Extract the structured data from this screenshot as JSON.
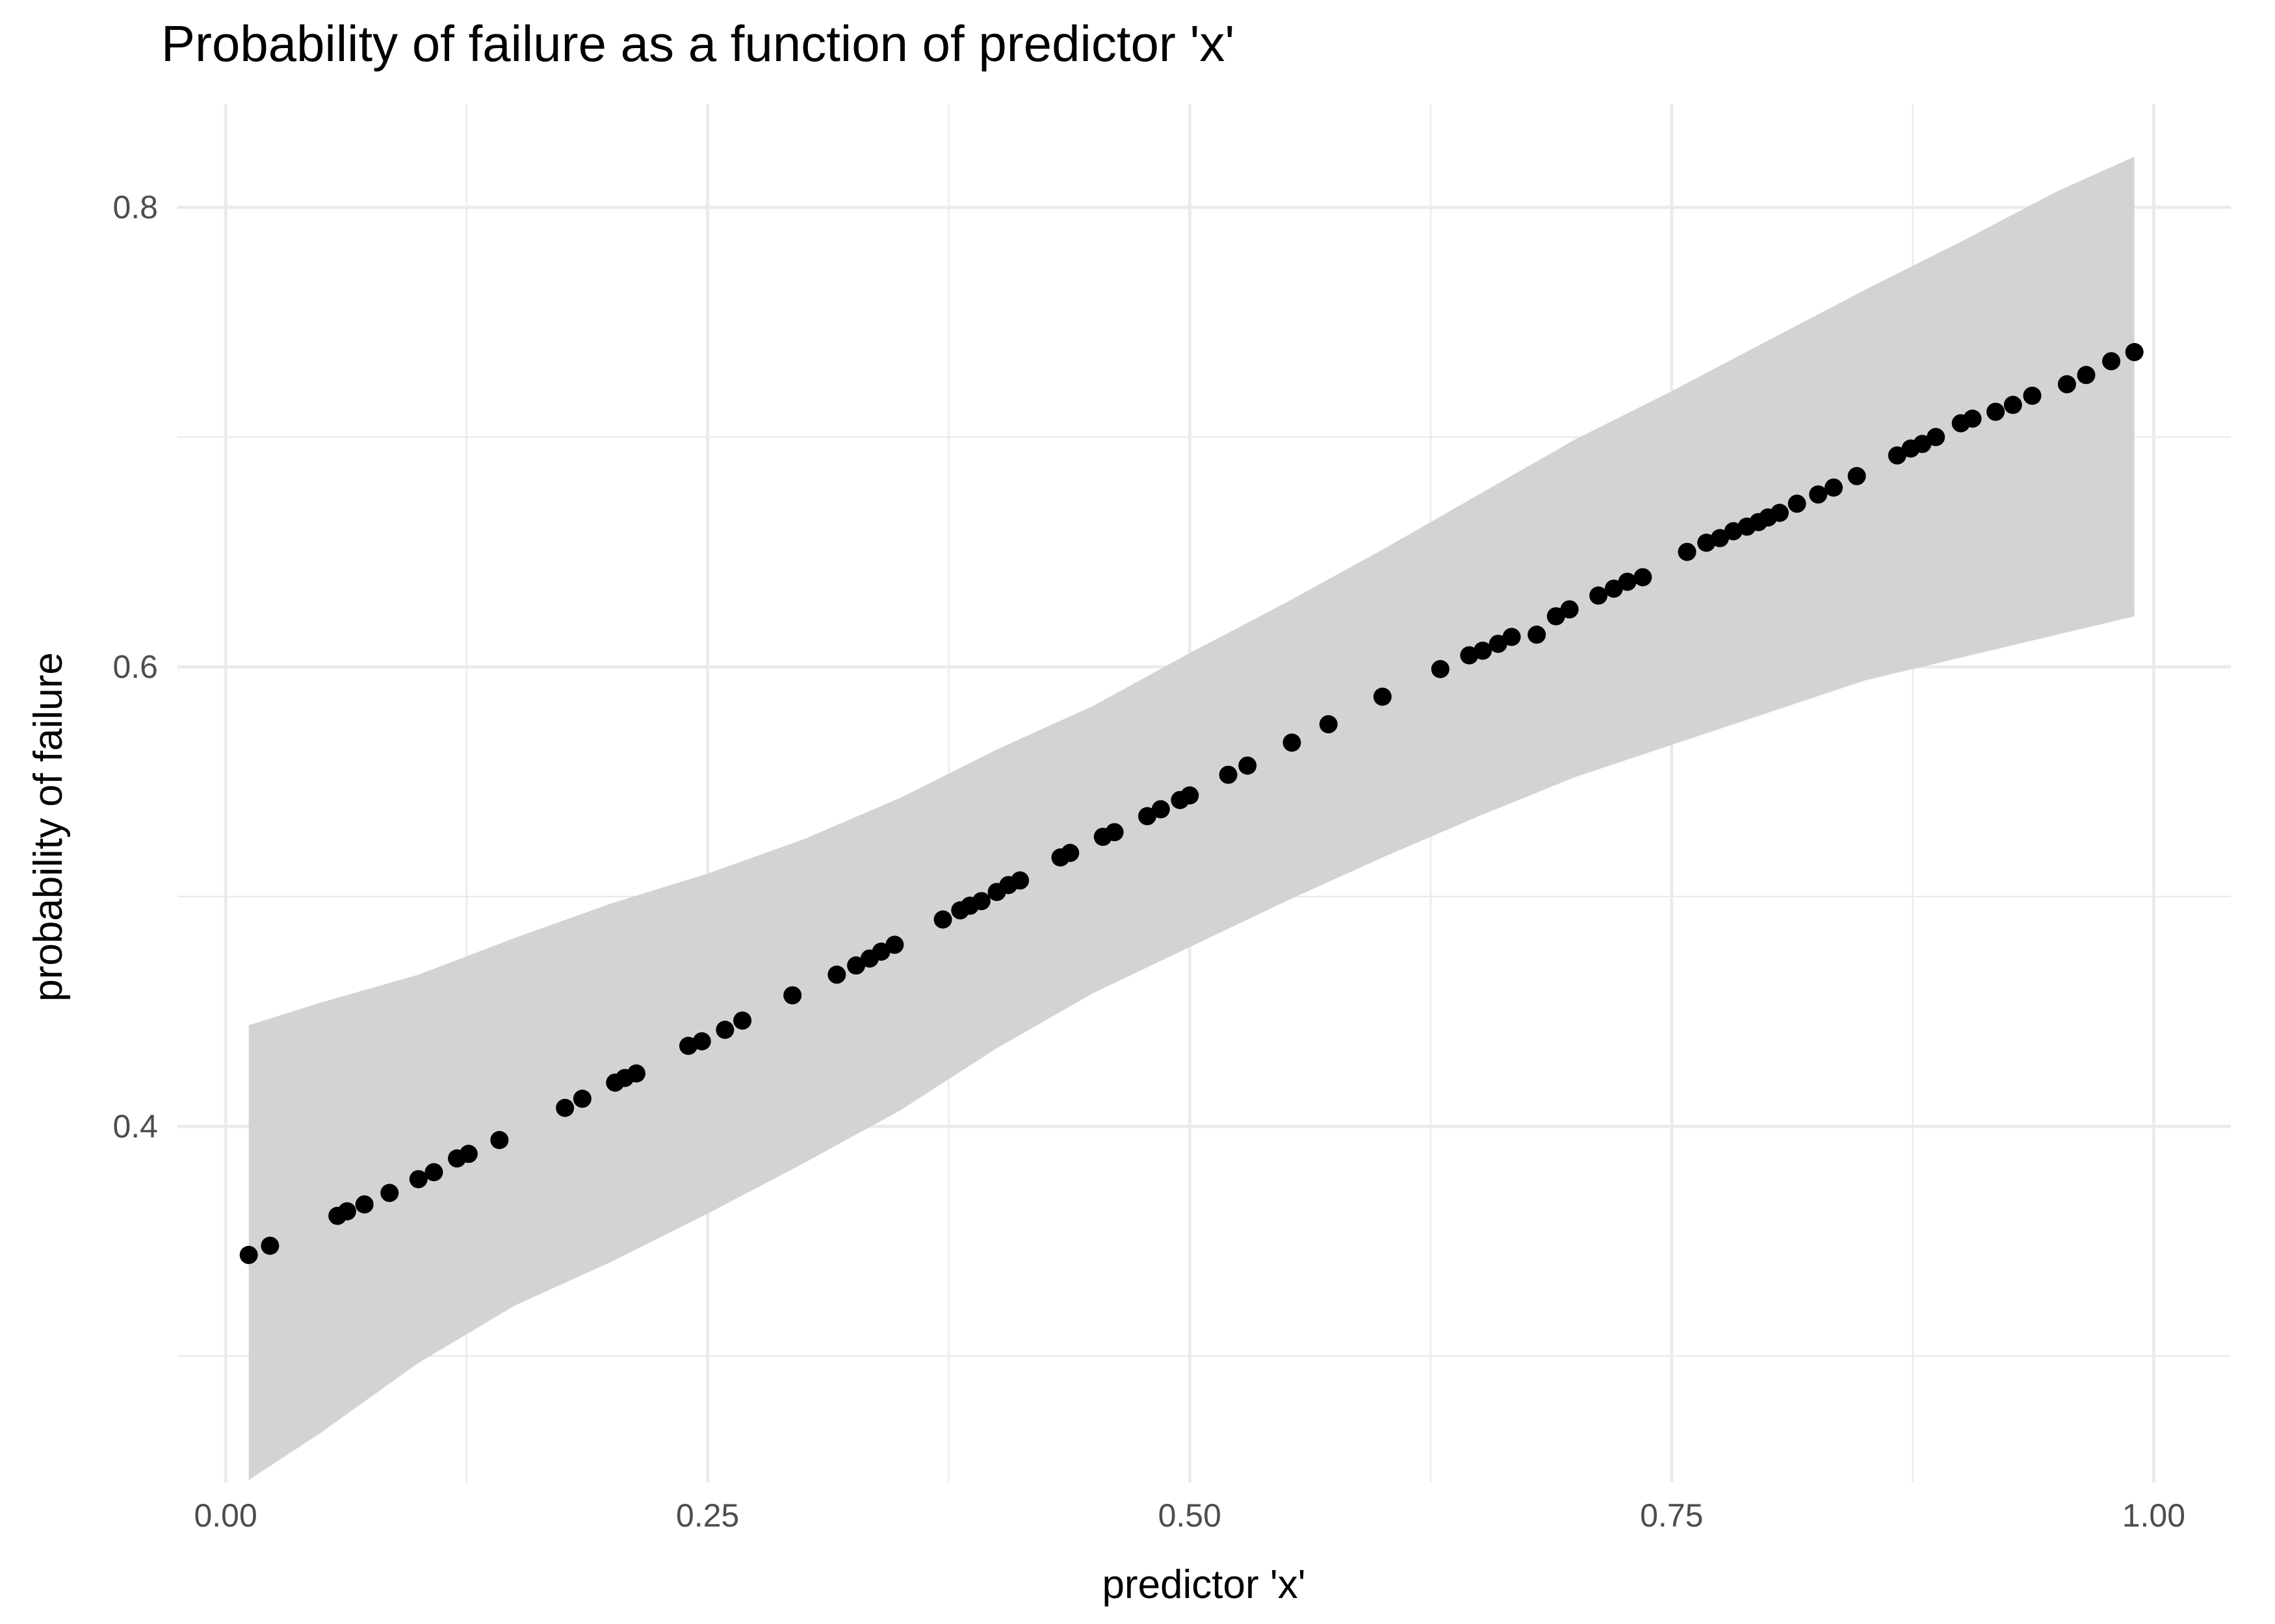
{
  "chart_data": {
    "type": "scatter",
    "title": "Probability of failure as a function of predictor 'x'",
    "xlabel": "predictor 'x'",
    "ylabel": "probability of failure",
    "xlim": [
      -0.025,
      1.04
    ],
    "ylim": [
      0.245,
      0.845
    ],
    "x_ticks": [
      0.0,
      0.25,
      0.5,
      0.75,
      1.0
    ],
    "x_tick_labels": [
      "0.00",
      "0.25",
      "0.50",
      "0.75",
      "1.00"
    ],
    "y_ticks": [
      0.4,
      0.6,
      0.8
    ],
    "y_tick_labels": [
      "0.4",
      "0.6",
      "0.8"
    ],
    "grid": true,
    "legend": "none",
    "colors": {
      "points": "#000000",
      "ribbon": "#d3d3d3",
      "grid": "#ebebeb"
    },
    "series": [
      {
        "points": [
          [
            0.012,
            0.344
          ],
          [
            0.023,
            0.348
          ],
          [
            0.058,
            0.361
          ],
          [
            0.063,
            0.363
          ],
          [
            0.072,
            0.366
          ],
          [
            0.085,
            0.371
          ],
          [
            0.1,
            0.377
          ],
          [
            0.108,
            0.38
          ],
          [
            0.12,
            0.386
          ],
          [
            0.126,
            0.388
          ],
          [
            0.142,
            0.394
          ],
          [
            0.176,
            0.408
          ],
          [
            0.185,
            0.412
          ],
          [
            0.202,
            0.419
          ],
          [
            0.207,
            0.421
          ],
          [
            0.213,
            0.423
          ],
          [
            0.24,
            0.435
          ],
          [
            0.247,
            0.437
          ],
          [
            0.259,
            0.442
          ],
          [
            0.268,
            0.446
          ],
          [
            0.294,
            0.457
          ],
          [
            0.317,
            0.466
          ],
          [
            0.327,
            0.47
          ],
          [
            0.334,
            0.473
          ],
          [
            0.34,
            0.476
          ],
          [
            0.347,
            0.479
          ],
          [
            0.372,
            0.49
          ],
          [
            0.381,
            0.494
          ],
          [
            0.386,
            0.496
          ],
          [
            0.392,
            0.498
          ],
          [
            0.4,
            0.502
          ],
          [
            0.406,
            0.505
          ],
          [
            0.412,
            0.507
          ],
          [
            0.433,
            0.517
          ],
          [
            0.438,
            0.519
          ],
          [
            0.455,
            0.526
          ],
          [
            0.461,
            0.528
          ],
          [
            0.478,
            0.535
          ],
          [
            0.485,
            0.538
          ],
          [
            0.495,
            0.542
          ],
          [
            0.5,
            0.544
          ],
          [
            0.52,
            0.553
          ],
          [
            0.53,
            0.557
          ],
          [
            0.553,
            0.567
          ],
          [
            0.572,
            0.575
          ],
          [
            0.6,
            0.587
          ],
          [
            0.63,
            0.599
          ],
          [
            0.645,
            0.605
          ],
          [
            0.652,
            0.607
          ],
          [
            0.66,
            0.61
          ],
          [
            0.667,
            0.613
          ],
          [
            0.68,
            0.614
          ],
          [
            0.69,
            0.622
          ],
          [
            0.697,
            0.625
          ],
          [
            0.712,
            0.631
          ],
          [
            0.72,
            0.634
          ],
          [
            0.727,
            0.637
          ],
          [
            0.735,
            0.639
          ],
          [
            0.758,
            0.65
          ],
          [
            0.768,
            0.654
          ],
          [
            0.775,
            0.656
          ],
          [
            0.782,
            0.659
          ],
          [
            0.789,
            0.661
          ],
          [
            0.795,
            0.663
          ],
          [
            0.8,
            0.665
          ],
          [
            0.806,
            0.667
          ],
          [
            0.815,
            0.671
          ],
          [
            0.826,
            0.675
          ],
          [
            0.834,
            0.678
          ],
          [
            0.846,
            0.683
          ],
          [
            0.867,
            0.692
          ],
          [
            0.874,
            0.695
          ],
          [
            0.88,
            0.697
          ],
          [
            0.887,
            0.7
          ],
          [
            0.9,
            0.706
          ],
          [
            0.906,
            0.708
          ],
          [
            0.918,
            0.711
          ],
          [
            0.927,
            0.714
          ],
          [
            0.937,
            0.718
          ],
          [
            0.955,
            0.723
          ],
          [
            0.965,
            0.727
          ],
          [
            0.978,
            0.733
          ],
          [
            0.99,
            0.737
          ]
        ]
      }
    ],
    "ribbon": {
      "x": [
        0.012,
        0.05,
        0.1,
        0.15,
        0.2,
        0.25,
        0.3,
        0.35,
        0.4,
        0.45,
        0.5,
        0.55,
        0.6,
        0.65,
        0.7,
        0.75,
        0.8,
        0.85,
        0.9,
        0.95,
        0.99
      ],
      "upper": [
        0.444,
        0.454,
        0.466,
        0.482,
        0.497,
        0.51,
        0.525,
        0.543,
        0.564,
        0.583,
        0.606,
        0.628,
        0.651,
        0.675,
        0.699,
        0.72,
        0.742,
        0.764,
        0.785,
        0.807,
        0.822
      ],
      "lower": [
        0.246,
        0.267,
        0.297,
        0.322,
        0.341,
        0.362,
        0.384,
        0.407,
        0.434,
        0.458,
        0.478,
        0.498,
        0.517,
        0.535,
        0.552,
        0.566,
        0.58,
        0.594,
        0.604,
        0.614,
        0.622
      ]
    }
  }
}
